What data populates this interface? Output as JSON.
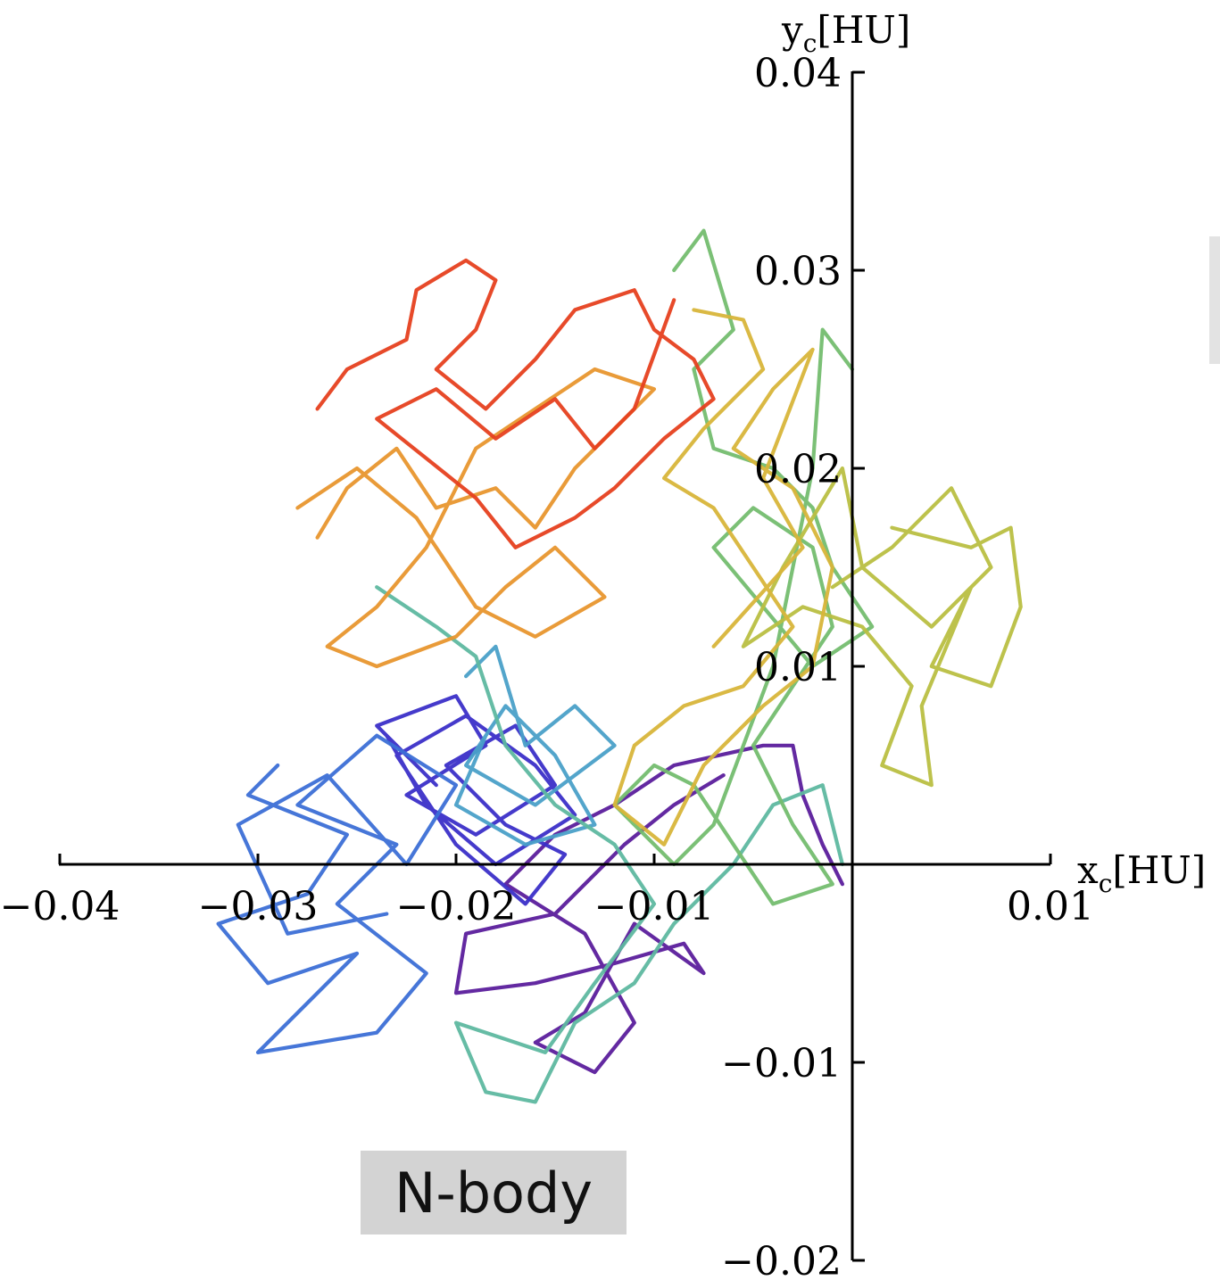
{
  "panel_label": "N-body",
  "chart_data": {
    "type": "line",
    "xlabel": "x_c[HU]",
    "ylabel": "y_c[HU]",
    "xlim": [
      -0.04,
      0.01
    ],
    "ylim": [
      -0.02,
      0.04
    ],
    "x_ticks": [
      -0.04,
      -0.03,
      -0.02,
      -0.01,
      0.01
    ],
    "x_tick_labels": [
      "−0.04",
      "−0.03",
      "−0.02",
      "−0.01",
      "0.01"
    ],
    "y_ticks": [
      -0.02,
      -0.01,
      0.01,
      0.02,
      0.03,
      0.04
    ],
    "y_tick_labels": [
      "−0.02",
      "−0.01",
      "0.01",
      "0.02",
      "0.03",
      "0.04"
    ],
    "axes_through_origin": true,
    "grid": false,
    "legend": "none",
    "color_map": "rainbow (purple → blue → teal → green → yellow → orange → red, ordered by time)",
    "series": [
      {
        "color": "#5b1e9c",
        "points": [
          [
            -0.0065,
            0.0045
          ],
          [
            -0.009,
            0.003
          ],
          [
            -0.0115,
            0.001
          ],
          [
            -0.015,
            -0.0025
          ],
          [
            -0.0195,
            -0.0035
          ],
          [
            -0.02,
            -0.0065
          ],
          [
            -0.016,
            -0.006
          ],
          [
            -0.012,
            -0.005
          ],
          [
            -0.0085,
            -0.004
          ],
          [
            -0.0075,
            -0.0055
          ],
          [
            -0.011,
            -0.003
          ],
          [
            -0.0135,
            -0.0075
          ],
          [
            -0.016,
            -0.009
          ],
          [
            -0.013,
            -0.0105
          ],
          [
            -0.011,
            -0.008
          ],
          [
            -0.0135,
            -0.0035
          ],
          [
            -0.0175,
            -0.001
          ],
          [
            -0.015,
            0.0015
          ],
          [
            -0.012,
            0.003
          ],
          [
            -0.009,
            0.005
          ],
          [
            -0.0045,
            0.006
          ],
          [
            -0.003,
            0.006
          ],
          [
            -0.0025,
            0.0035
          ],
          [
            -0.0015,
            0.001
          ],
          [
            -0.0005,
            -0.001
          ]
        ]
      },
      {
        "color": "#3b2fc8",
        "points": [
          [
            -0.021,
            0.004
          ],
          [
            -0.024,
            0.007
          ],
          [
            -0.02,
            0.0085
          ],
          [
            -0.0185,
            0.006
          ],
          [
            -0.0225,
            0.0035
          ],
          [
            -0.019,
            0.0015
          ],
          [
            -0.015,
            0.004
          ],
          [
            -0.017,
            0.007
          ],
          [
            -0.0205,
            0.005
          ],
          [
            -0.0175,
            0.002
          ],
          [
            -0.0145,
            0.0005
          ],
          [
            -0.0165,
            -0.002
          ],
          [
            -0.02,
            0.001
          ],
          [
            -0.023,
            0.0055
          ],
          [
            -0.0195,
            0.0075
          ],
          [
            -0.016,
            0.005
          ],
          [
            -0.014,
            0.0025
          ],
          [
            -0.018,
            0.0
          ],
          [
            -0.0215,
            0.003
          ],
          [
            -0.0235,
            0.0065
          ]
        ]
      },
      {
        "color": "#3c6fd6",
        "points": [
          [
            -0.029,
            0.005
          ],
          [
            -0.0305,
            0.0035
          ],
          [
            -0.0255,
            0.0015
          ],
          [
            -0.0275,
            -0.0015
          ],
          [
            -0.032,
            -0.003
          ],
          [
            -0.0295,
            -0.006
          ],
          [
            -0.025,
            -0.0045
          ],
          [
            -0.03,
            -0.0095
          ],
          [
            -0.024,
            -0.0085
          ],
          [
            -0.0215,
            -0.0055
          ],
          [
            -0.026,
            -0.002
          ],
          [
            -0.023,
            0.001
          ],
          [
            -0.028,
            0.003
          ],
          [
            -0.024,
            0.0065
          ],
          [
            -0.02,
            0.004
          ],
          [
            -0.0225,
            0.0
          ],
          [
            -0.0265,
            0.0045
          ],
          [
            -0.031,
            0.002
          ],
          [
            -0.0285,
            -0.0035
          ],
          [
            -0.0235,
            -0.0025
          ]
        ]
      },
      {
        "color": "#4aa0c8",
        "points": [
          [
            -0.0195,
            0.0095
          ],
          [
            -0.018,
            0.011
          ],
          [
            -0.0165,
            0.006
          ],
          [
            -0.014,
            0.008
          ],
          [
            -0.012,
            0.006
          ],
          [
            -0.016,
            0.003
          ],
          [
            -0.0195,
            0.005
          ],
          [
            -0.0175,
            0.008
          ],
          [
            -0.015,
            0.0055
          ],
          [
            -0.013,
            0.002
          ],
          [
            -0.0165,
            0.001
          ],
          [
            -0.02,
            0.003
          ],
          [
            -0.0185,
            0.0065
          ]
        ]
      },
      {
        "color": "#5eb8a0",
        "points": [
          [
            -0.024,
            0.014
          ],
          [
            -0.021,
            0.012
          ],
          [
            -0.019,
            0.0105
          ],
          [
            -0.0175,
            0.006
          ],
          [
            -0.015,
            0.003
          ],
          [
            -0.012,
            0.001
          ],
          [
            -0.01,
            -0.002
          ],
          [
            -0.013,
            -0.006
          ],
          [
            -0.0155,
            -0.0095
          ],
          [
            -0.02,
            -0.008
          ],
          [
            -0.0185,
            -0.0115
          ],
          [
            -0.016,
            -0.012
          ],
          [
            -0.014,
            -0.008
          ],
          [
            -0.011,
            -0.006
          ],
          [
            -0.009,
            -0.003
          ],
          [
            -0.006,
            0.0
          ],
          [
            -0.004,
            0.003
          ],
          [
            -0.0015,
            0.004
          ],
          [
            -0.0005,
            0.0
          ]
        ]
      },
      {
        "color": "#74bd6f",
        "points": [
          [
            -0.009,
            0.03
          ],
          [
            -0.0075,
            0.032
          ],
          [
            -0.006,
            0.027
          ],
          [
            -0.008,
            0.025
          ],
          [
            -0.007,
            0.021
          ],
          [
            -0.004,
            0.02
          ],
          [
            -0.002,
            0.018
          ],
          [
            -0.001,
            0.015
          ],
          [
            0.001,
            0.012
          ],
          [
            -0.002,
            0.01
          ],
          [
            -0.0045,
            0.013
          ],
          [
            -0.007,
            0.016
          ],
          [
            -0.005,
            0.018
          ],
          [
            -0.002,
            0.016
          ],
          [
            -0.001,
            0.012
          ],
          [
            -0.003,
            0.009
          ],
          [
            -0.005,
            0.006
          ],
          [
            -0.003,
            0.002
          ],
          [
            -0.001,
            -0.001
          ],
          [
            -0.004,
            -0.002
          ],
          [
            -0.006,
            0.001
          ],
          [
            -0.008,
            0.004
          ],
          [
            -0.01,
            0.005
          ],
          [
            -0.012,
            0.003
          ],
          [
            -0.009,
            0.0
          ],
          [
            -0.007,
            0.002
          ],
          [
            -0.004,
            0.01
          ],
          [
            -0.002,
            0.02
          ],
          [
            -0.0015,
            0.027
          ],
          [
            0.0,
            0.025
          ]
        ]
      },
      {
        "color": "#b9bf42",
        "points": [
          [
            0.002,
            0.017
          ],
          [
            0.006,
            0.016
          ],
          [
            0.008,
            0.017
          ],
          [
            0.0085,
            0.013
          ],
          [
            0.007,
            0.009
          ],
          [
            0.004,
            0.01
          ],
          [
            0.006,
            0.014
          ],
          [
            0.0035,
            0.008
          ],
          [
            0.004,
            0.004
          ],
          [
            0.0015,
            0.005
          ],
          [
            0.003,
            0.009
          ],
          [
            0.0005,
            0.012
          ],
          [
            -0.0025,
            0.013
          ],
          [
            -0.0055,
            0.011
          ],
          [
            -0.0035,
            0.015
          ],
          [
            -0.0005,
            0.02
          ],
          [
            0.0005,
            0.015
          ],
          [
            0.004,
            0.012
          ],
          [
            0.007,
            0.015
          ],
          [
            0.005,
            0.019
          ],
          [
            0.002,
            0.016
          ],
          [
            -0.001,
            0.014
          ]
        ]
      },
      {
        "color": "#d8b53a",
        "points": [
          [
            -0.008,
            0.028
          ],
          [
            -0.0055,
            0.0275
          ],
          [
            -0.0045,
            0.025
          ],
          [
            -0.0075,
            0.022
          ],
          [
            -0.0095,
            0.0195
          ],
          [
            -0.007,
            0.018
          ],
          [
            -0.005,
            0.015
          ],
          [
            -0.003,
            0.012
          ],
          [
            -0.0055,
            0.009
          ],
          [
            -0.0085,
            0.008
          ],
          [
            -0.011,
            0.006
          ],
          [
            -0.012,
            0.003
          ],
          [
            -0.0095,
            0.001
          ],
          [
            -0.0075,
            0.005
          ],
          [
            -0.0045,
            0.008
          ],
          [
            -0.002,
            0.01
          ],
          [
            -0.001,
            0.015
          ],
          [
            -0.003,
            0.019
          ],
          [
            -0.006,
            0.021
          ],
          [
            -0.004,
            0.024
          ],
          [
            -0.002,
            0.026
          ],
          [
            -0.0045,
            0.0195
          ],
          [
            -0.0025,
            0.016
          ],
          [
            -0.007,
            0.011
          ]
        ]
      },
      {
        "color": "#e8962e",
        "points": [
          [
            -0.027,
            0.0165
          ],
          [
            -0.0255,
            0.019
          ],
          [
            -0.023,
            0.021
          ],
          [
            -0.021,
            0.018
          ],
          [
            -0.018,
            0.019
          ],
          [
            -0.016,
            0.017
          ],
          [
            -0.014,
            0.02
          ],
          [
            -0.012,
            0.022
          ],
          [
            -0.01,
            0.024
          ],
          [
            -0.013,
            0.025
          ],
          [
            -0.016,
            0.023
          ],
          [
            -0.019,
            0.021
          ],
          [
            -0.0215,
            0.016
          ],
          [
            -0.024,
            0.013
          ],
          [
            -0.0265,
            0.011
          ],
          [
            -0.024,
            0.01
          ],
          [
            -0.02,
            0.0115
          ],
          [
            -0.0175,
            0.014
          ],
          [
            -0.015,
            0.016
          ],
          [
            -0.0125,
            0.0135
          ],
          [
            -0.016,
            0.0115
          ],
          [
            -0.019,
            0.013
          ],
          [
            -0.022,
            0.0175
          ],
          [
            -0.025,
            0.02
          ],
          [
            -0.028,
            0.018
          ]
        ]
      },
      {
        "color": "#e6401f",
        "points": [
          [
            -0.027,
            0.023
          ],
          [
            -0.0255,
            0.025
          ],
          [
            -0.0225,
            0.0265
          ],
          [
            -0.022,
            0.029
          ],
          [
            -0.0195,
            0.0305
          ],
          [
            -0.018,
            0.0295
          ],
          [
            -0.019,
            0.027
          ],
          [
            -0.021,
            0.025
          ],
          [
            -0.0185,
            0.023
          ],
          [
            -0.016,
            0.0255
          ],
          [
            -0.014,
            0.028
          ],
          [
            -0.011,
            0.029
          ],
          [
            -0.01,
            0.027
          ],
          [
            -0.008,
            0.0255
          ],
          [
            -0.007,
            0.0235
          ],
          [
            -0.0095,
            0.0215
          ],
          [
            -0.012,
            0.019
          ],
          [
            -0.014,
            0.0175
          ],
          [
            -0.017,
            0.016
          ],
          [
            -0.019,
            0.0185
          ],
          [
            -0.0215,
            0.0205
          ],
          [
            -0.024,
            0.0225
          ],
          [
            -0.021,
            0.024
          ],
          [
            -0.018,
            0.0215
          ],
          [
            -0.015,
            0.0235
          ],
          [
            -0.013,
            0.021
          ],
          [
            -0.011,
            0.023
          ],
          [
            -0.009,
            0.0285
          ]
        ]
      }
    ]
  }
}
